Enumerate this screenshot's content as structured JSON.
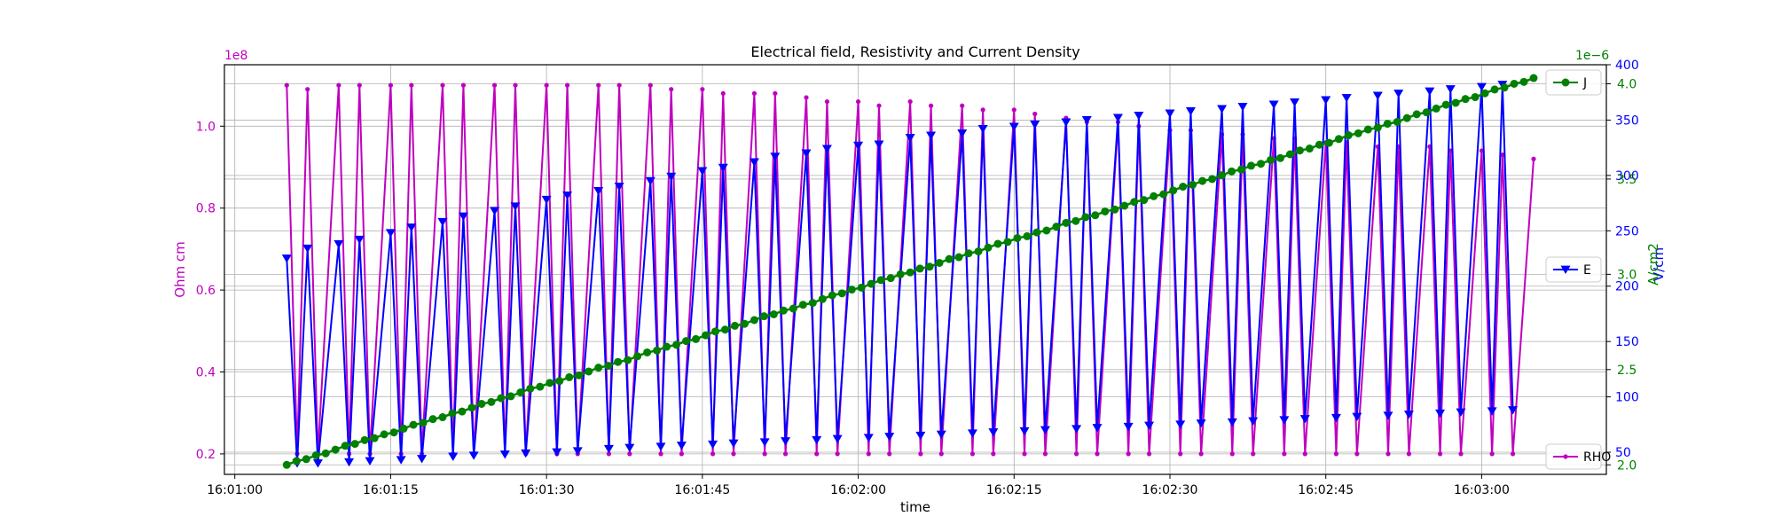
{
  "chart_data": {
    "type": "line",
    "title": "Electrical field, Resistivity and Current Density",
    "xlabel": "time",
    "x_ticks": [
      "16:01:00",
      "16:01:15",
      "16:01:30",
      "16:01:45",
      "16:02:00",
      "16:02:15",
      "16:02:30",
      "16:02:45",
      "16:03:00"
    ],
    "x_range": [
      "16:00:59",
      "16:03:12"
    ],
    "grid": true,
    "axes": {
      "rho": {
        "label": "Ohm cm",
        "multiplier": "1e8",
        "ticks": [
          "0.2",
          "0.4",
          "0.6",
          "0.8",
          "1.0"
        ],
        "range": [
          0.15,
          1.15
        ],
        "color": "#bf00bf"
      },
      "e": {
        "label": "V/cm",
        "ticks": [
          "50",
          "100",
          "150",
          "200",
          "250",
          "300",
          "350",
          "400"
        ],
        "range": [
          30,
          400
        ],
        "color": "#0000ff"
      },
      "j": {
        "label": "A/cm2",
        "multiplier": "1e−6",
        "ticks": [
          "2.0",
          "2.5",
          "3.0",
          "3.5",
          "4.0"
        ],
        "range": [
          1.95,
          4.1
        ],
        "color": "#008000"
      }
    },
    "series": [
      {
        "name": "RHO",
        "axis": "rho",
        "color": "#bf00bf",
        "marker": "dot",
        "x": [
          "16:01:05",
          "16:01:06",
          "16:01:07",
          "16:01:08",
          "16:01:10",
          "16:01:11",
          "16:01:12",
          "16:01:13",
          "16:01:15",
          "16:01:16",
          "16:01:17",
          "16:01:18",
          "16:01:20",
          "16:01:21",
          "16:01:22",
          "16:01:23",
          "16:01:25",
          "16:01:26",
          "16:01:27",
          "16:01:28",
          "16:01:30",
          "16:01:31",
          "16:01:32",
          "16:01:33",
          "16:01:35",
          "16:01:36",
          "16:01:37",
          "16:01:38",
          "16:01:40",
          "16:01:41",
          "16:01:42",
          "16:01:43",
          "16:01:45",
          "16:01:46",
          "16:01:47",
          "16:01:48",
          "16:01:50",
          "16:01:51",
          "16:01:52",
          "16:01:53",
          "16:01:55",
          "16:01:56",
          "16:01:57",
          "16:01:58",
          "16:02:00",
          "16:02:01",
          "16:02:02",
          "16:02:03",
          "16:02:05",
          "16:02:06",
          "16:02:07",
          "16:02:08",
          "16:02:10",
          "16:02:11",
          "16:02:12",
          "16:02:13",
          "16:02:15",
          "16:02:16",
          "16:02:17",
          "16:02:18",
          "16:02:20",
          "16:02:21",
          "16:02:22",
          "16:02:23",
          "16:02:25",
          "16:02:26",
          "16:02:27",
          "16:02:28",
          "16:02:30",
          "16:02:31",
          "16:02:32",
          "16:02:33",
          "16:02:35",
          "16:02:36",
          "16:02:37",
          "16:02:38",
          "16:02:40",
          "16:02:41",
          "16:02:42",
          "16:02:43",
          "16:02:45",
          "16:02:46",
          "16:02:47",
          "16:02:48",
          "16:02:50",
          "16:02:51",
          "16:02:52",
          "16:02:53",
          "16:02:55",
          "16:02:56",
          "16:02:57",
          "16:02:58",
          "16:03:00",
          "16:03:01",
          "16:03:02",
          "16:03:03",
          "16:03:05"
        ],
        "values": [
          1.1,
          0.2,
          1.09,
          0.2,
          1.1,
          0.2,
          1.1,
          0.2,
          1.1,
          0.2,
          1.1,
          0.2,
          1.1,
          0.2,
          1.1,
          0.2,
          1.1,
          0.2,
          1.1,
          0.2,
          1.1,
          0.2,
          1.1,
          0.2,
          1.1,
          0.2,
          1.1,
          0.2,
          1.1,
          0.2,
          1.09,
          0.2,
          1.09,
          0.2,
          1.08,
          0.2,
          1.08,
          0.2,
          1.08,
          0.2,
          1.07,
          0.2,
          1.06,
          0.2,
          1.06,
          0.2,
          1.05,
          0.2,
          1.06,
          0.2,
          1.05,
          0.2,
          1.05,
          0.2,
          1.04,
          0.2,
          1.04,
          0.2,
          1.03,
          0.2,
          1.02,
          0.2,
          1.01,
          0.2,
          1.01,
          0.2,
          1.0,
          0.2,
          0.99,
          0.2,
          0.99,
          0.2,
          0.98,
          0.2,
          0.98,
          0.2,
          0.97,
          0.2,
          0.97,
          0.2,
          0.96,
          0.2,
          0.96,
          0.2,
          0.95,
          0.2,
          0.95,
          0.2,
          0.95,
          0.2,
          0.94,
          0.2,
          0.94,
          0.2,
          0.93,
          0.2,
          0.92
        ]
      },
      {
        "name": "E",
        "axis": "e",
        "color": "#0000ff",
        "marker": "triangle-down",
        "x": [
          "16:01:05",
          "16:01:06",
          "16:01:07",
          "16:01:08",
          "16:01:10",
          "16:01:11",
          "16:01:12",
          "16:01:13",
          "16:01:15",
          "16:01:16",
          "16:01:17",
          "16:01:18",
          "16:01:20",
          "16:01:21",
          "16:01:22",
          "16:01:23",
          "16:01:25",
          "16:01:26",
          "16:01:27",
          "16:01:28",
          "16:01:30",
          "16:01:31",
          "16:01:32",
          "16:01:33",
          "16:01:35",
          "16:01:36",
          "16:01:37",
          "16:01:38",
          "16:01:40",
          "16:01:41",
          "16:01:42",
          "16:01:43",
          "16:01:45",
          "16:01:46",
          "16:01:47",
          "16:01:48",
          "16:01:50",
          "16:01:51",
          "16:01:52",
          "16:01:53",
          "16:01:55",
          "16:01:56",
          "16:01:57",
          "16:01:58",
          "16:02:00",
          "16:02:01",
          "16:02:02",
          "16:02:03",
          "16:02:05",
          "16:02:06",
          "16:02:07",
          "16:02:08",
          "16:02:10",
          "16:02:11",
          "16:02:12",
          "16:02:13",
          "16:02:15",
          "16:02:16",
          "16:02:17",
          "16:02:18",
          "16:02:20",
          "16:02:21",
          "16:02:22",
          "16:02:23",
          "16:02:25",
          "16:02:26",
          "16:02:27",
          "16:02:28",
          "16:02:30",
          "16:02:31",
          "16:02:32",
          "16:02:33",
          "16:02:35",
          "16:02:36",
          "16:02:37",
          "16:02:38",
          "16:02:40",
          "16:02:41",
          "16:02:42",
          "16:02:43",
          "16:02:45",
          "16:02:46",
          "16:02:47",
          "16:02:48",
          "16:02:50",
          "16:02:51",
          "16:02:52",
          "16:02:53",
          "16:02:55",
          "16:02:56",
          "16:02:57",
          "16:02:58",
          "16:03:00",
          "16:03:01",
          "16:03:02",
          "16:03:03"
        ],
        "values": [
          225,
          40,
          234,
          40,
          238,
          41,
          242,
          42,
          248,
          43,
          253,
          44,
          258,
          46,
          263,
          47,
          268,
          48,
          272,
          49,
          278,
          50,
          282,
          51,
          286,
          53,
          290,
          54,
          295,
          55,
          299,
          56,
          304,
          57,
          307,
          58,
          312,
          59,
          317,
          60,
          320,
          61,
          324,
          62,
          327,
          63,
          328,
          64,
          334,
          65,
          336,
          66,
          338,
          67,
          342,
          68,
          344,
          69,
          346,
          70,
          348,
          71,
          350,
          72,
          352,
          73,
          354,
          74,
          356,
          75,
          358,
          76,
          360,
          77,
          362,
          78,
          364,
          79,
          366,
          80,
          368,
          81,
          370,
          82,
          372,
          83,
          374,
          84,
          376,
          85,
          378,
          86,
          380,
          87,
          382,
          88
        ]
      },
      {
        "name": "J",
        "axis": "j",
        "color": "#008000",
        "marker": "circle",
        "x_start": "16:01:05",
        "x_end": "16:03:05",
        "values": [
          2.0,
          2.02,
          2.03,
          2.05,
          2.06,
          2.08,
          2.1,
          2.11,
          2.13,
          2.14,
          2.16,
          2.17,
          2.19,
          2.21,
          2.22,
          2.24,
          2.25,
          2.27,
          2.28,
          2.3,
          2.32,
          2.33,
          2.35,
          2.36,
          2.38,
          2.4,
          2.41,
          2.43,
          2.44,
          2.46,
          2.47,
          2.49,
          2.51,
          2.52,
          2.54,
          2.55,
          2.57,
          2.59,
          2.6,
          2.62,
          2.63,
          2.65,
          2.66,
          2.68,
          2.7,
          2.71,
          2.73,
          2.74,
          2.76,
          2.78,
          2.79,
          2.81,
          2.82,
          2.84,
          2.85,
          2.87,
          2.89,
          2.9,
          2.92,
          2.93,
          2.95,
          2.97,
          2.98,
          3.0,
          3.01,
          3.03,
          3.04,
          3.06,
          3.08,
          3.09,
          3.11,
          3.12,
          3.14,
          3.16,
          3.17,
          3.19,
          3.2,
          3.22,
          3.23,
          3.25,
          3.27,
          3.28,
          3.3,
          3.31,
          3.33,
          3.34,
          3.36,
          3.38,
          3.39,
          3.41,
          3.42,
          3.44,
          3.46,
          3.47,
          3.49,
          3.5,
          3.52,
          3.54,
          3.55,
          3.57,
          3.58,
          3.6,
          3.61,
          3.63,
          3.65,
          3.66,
          3.68,
          3.69,
          3.71,
          3.73,
          3.74,
          3.76,
          3.77,
          3.79,
          3.8,
          3.82,
          3.84,
          3.85,
          3.87,
          3.89,
          3.9,
          3.92,
          3.93,
          3.95,
          3.97,
          3.98,
          4.0,
          4.01,
          4.03
        ]
      }
    ],
    "legends": [
      {
        "series": "J",
        "placement": "upper-right"
      },
      {
        "series": "E",
        "placement": "center-right"
      },
      {
        "series": "RHO",
        "placement": "lower-right"
      }
    ]
  }
}
